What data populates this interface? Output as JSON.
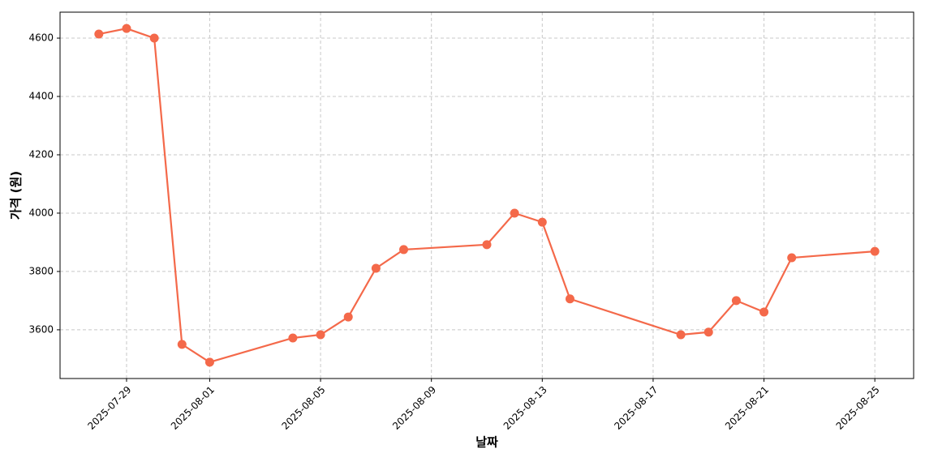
{
  "chart_data": {
    "type": "line",
    "xlabel": "날짜",
    "ylabel": "가격 (원)",
    "x": [
      "2025-07-28",
      "2025-07-29",
      "2025-07-30",
      "2025-07-31",
      "2025-08-01",
      "2025-08-04",
      "2025-08-05",
      "2025-08-06",
      "2025-08-07",
      "2025-08-08",
      "2025-08-11",
      "2025-08-12",
      "2025-08-13",
      "2025-08-14",
      "2025-08-18",
      "2025-08-19",
      "2025-08-20",
      "2025-08-21",
      "2025-08-22",
      "2025-08-25"
    ],
    "values": [
      4614,
      4633,
      4600,
      3550,
      3489,
      3572,
      3583,
      3644,
      3811,
      3875,
      3892,
      4000,
      3969,
      3706,
      3583,
      3592,
      3700,
      3661,
      3847,
      3869
    ],
    "color": "#f4694a",
    "xlim": [
      "2025-07-26T14:24",
      "2025-08-26T09:36"
    ],
    "xticks": [
      "2025-07-29",
      "2025-08-01",
      "2025-08-05",
      "2025-08-09",
      "2025-08-13",
      "2025-08-17",
      "2025-08-21",
      "2025-08-25"
    ],
    "ylim": [
      3433,
      4689
    ],
    "yticks": [
      3600,
      3800,
      4000,
      4200,
      4400,
      4600
    ],
    "grid": true
  }
}
